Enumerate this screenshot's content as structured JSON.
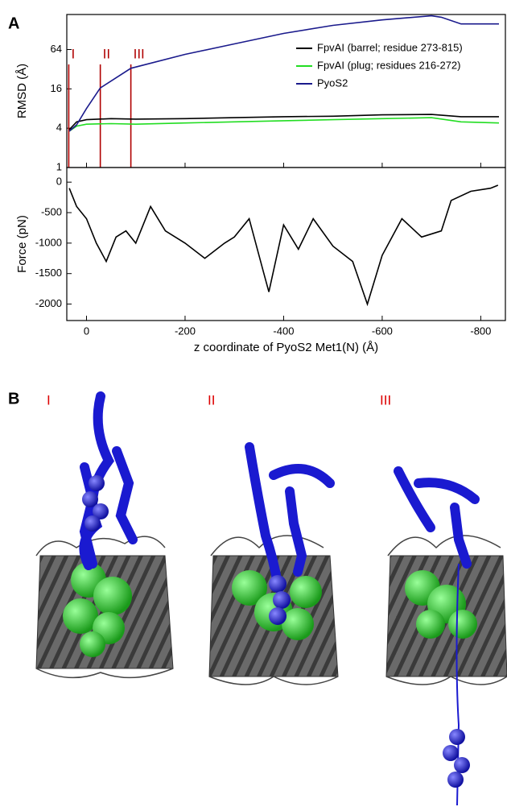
{
  "figure": {
    "panel_a": "A",
    "panel_b": "B",
    "structures": [
      "I",
      "II",
      "III"
    ]
  },
  "chart_data": [
    {
      "type": "line",
      "y_label": "RMSD (Å)",
      "log_y": true,
      "legend": "upper right",
      "xlim": [
        40,
        -850
      ],
      "xticks": [
        0,
        -200,
        -400,
        -600,
        -800
      ],
      "ylim": [
        1,
        220
      ],
      "yticks": [
        1,
        4,
        16,
        64
      ],
      "annotations": [
        {
          "label": "I",
          "x": 36,
          "color": "#b00000"
        },
        {
          "label": "II",
          "x": -28,
          "color": "#b00000"
        },
        {
          "label": "III",
          "x": -90,
          "color": "#b00000"
        }
      ],
      "series": [
        {
          "name": "FpvAI (barrel; residue 273-815)",
          "color": "#000000",
          "x": [
            35,
            20,
            0,
            -50,
            -100,
            -200,
            -300,
            -400,
            -500,
            -600,
            -700,
            -760,
            -837
          ],
          "values": [
            3.8,
            5,
            5.4,
            5.6,
            5.5,
            5.6,
            5.8,
            6,
            6.1,
            6.4,
            6.5,
            6,
            6
          ]
        },
        {
          "name": "FpvAI (plug; residues 216-272)",
          "color": "#22dd22",
          "x": [
            35,
            20,
            0,
            -50,
            -100,
            -200,
            -300,
            -400,
            -500,
            -600,
            -700,
            -760,
            -837
          ],
          "values": [
            3.6,
            4.3,
            4.6,
            4.7,
            4.6,
            4.8,
            5,
            5.2,
            5.4,
            5.6,
            5.8,
            5,
            4.8
          ]
        },
        {
          "name": "PyoS2",
          "color": "#1a1a8c",
          "x": [
            35,
            20,
            0,
            -28,
            -90,
            -200,
            -300,
            -400,
            -500,
            -600,
            -700,
            -720,
            -760,
            -837
          ],
          "values": [
            3.6,
            4.5,
            8,
            16.5,
            33,
            54,
            78,
            113,
            150,
            182,
            210,
            200,
            158,
            158
          ]
        }
      ]
    },
    {
      "type": "line",
      "y_label": "Force (pN)",
      "x_label": "z coordinate of PyoS2 Met1(N) (Å)",
      "color": "#000000",
      "xlim": [
        40,
        -850
      ],
      "xticks": [
        0,
        -200,
        -400,
        -600,
        -800
      ],
      "ylim": [
        -2270,
        240
      ],
      "yticks": [
        0,
        -500,
        -1000,
        -1500,
        -2000
      ],
      "x": [
        35,
        20,
        0,
        -20,
        -40,
        -60,
        -80,
        -100,
        -130,
        -160,
        -200,
        -240,
        -280,
        -300,
        -330,
        -360,
        -370,
        -400,
        -430,
        -460,
        -500,
        -540,
        -570,
        -600,
        -640,
        -680,
        -720,
        -740,
        -780,
        -820,
        -835
      ],
      "values": [
        -100,
        -400,
        -600,
        -1000,
        -1300,
        -900,
        -800,
        -1000,
        -400,
        -800,
        -1000,
        -1250,
        -1000,
        -900,
        -600,
        -1500,
        -1800,
        -700,
        -1100,
        -600,
        -1050,
        -1300,
        -2000,
        -1200,
        -600,
        -900,
        -800,
        -300,
        -150,
        -100,
        -50
      ]
    }
  ]
}
